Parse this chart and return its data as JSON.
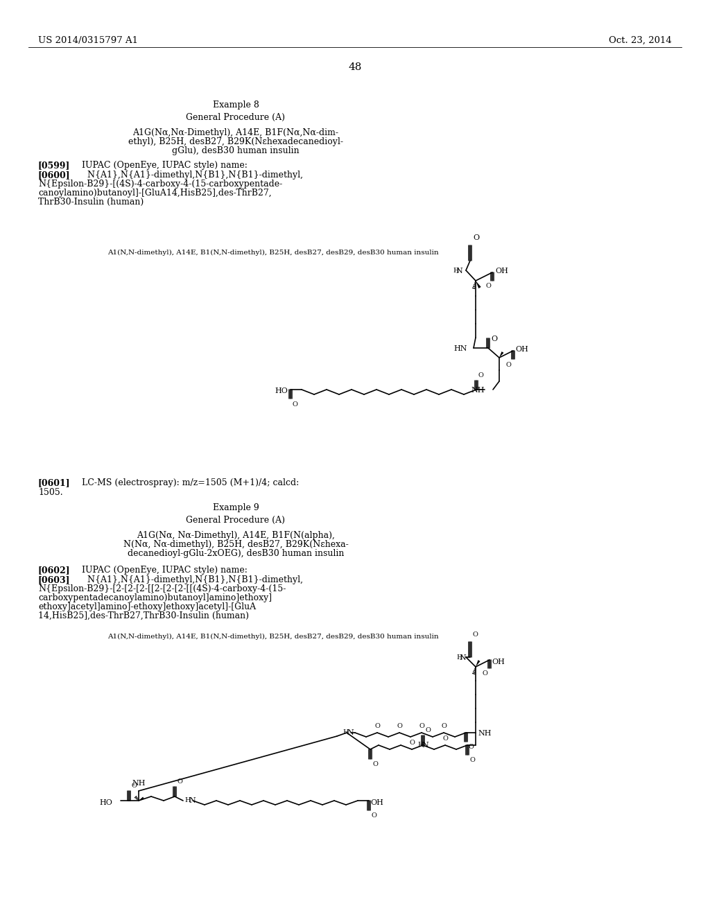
{
  "bg_color": "#ffffff",
  "header_left": "US 2014/0315797 A1",
  "header_right": "Oct. 23, 2014",
  "page_number": "48",
  "ex8_title": "Example 8",
  "ex8_proc": "General Procedure (A)",
  "ex8_c1": "A1G(Nα,Nα-Dimethyl), A14E, B1F(Nα,Nα-dim-",
  "ex8_c2": "ethyl), B25H, desB27, B29K(Nεhexadecanedioyl-",
  "ex8_c3": "gGlu), desB30 human insulin",
  "p599_tag": "[0599]",
  "p599_txt": "IUPAC (OpenEye, IUPAC style) name:",
  "p600_tag": "[0600]",
  "p600_l1": "  N{A1},N{A1}-dimethyl,N{B1},N{B1}-dimethyl,",
  "p600_l2": "N{Epsilon-B29}-[(4S)-4-carboxy-4-(15-carboxypentade-",
  "p600_l3": "canoylaminо)butanoyl]-[GluA14,HisB25],des-ThrB27,",
  "p600_l4": "ThrB30-Insulin (human)",
  "lbl8": "A1(N,N-dimethyl), A14E, B1(N,N-dimethyl), B25H, desB27, desB29, desB30 human insulin",
  "p601_tag": "[0601]",
  "p601_t1": "LC-MS (electrospray): m/z=1505 (M+1)/4; calcd:",
  "p601_t2": "1505.",
  "ex9_title": "Example 9",
  "ex9_proc": "General Procedure (A)",
  "ex9_c1": "A1G(Nα, Nα-Dimethyl), A14E, B1F(N(alpha),",
  "ex9_c2": "N(Nα, Nα-dimethyl), B25H, desB27, B29K(Nεhexa-",
  "ex9_c3": "decanedioyl-gGlu-2xOEG), desB30 human insulin",
  "p602_tag": "[0602]",
  "p602_txt": "IUPAC (OpenEye, IUPAC style) name:",
  "p603_tag": "[0603]",
  "p603_l1": "  N{A1},N{A1}-dimethyl,N{B1},N{B1}-dimethyl,",
  "p603_l2": "N{Epsilon-B29}-[2-[2-[2-[[2-[2-[2-[[(4S)-4-carboxy-4-(15-",
  "p603_l3": "carboxypentadecanoylaminо)butanoyl]aminо]ethoxy]",
  "p603_l4": "ethoxy]acetyl]aminо]-ethoxy]ethoxy]acetyl]-[GluA",
  "p603_l5": "14,HisB25],des-ThrB27,ThrB30-Insulin (human)",
  "lbl9": "A1(N,N-dimethyl), A14E, B1(N,N-dimethyl), B25H, desB27, desB29, desB30 human insulin"
}
